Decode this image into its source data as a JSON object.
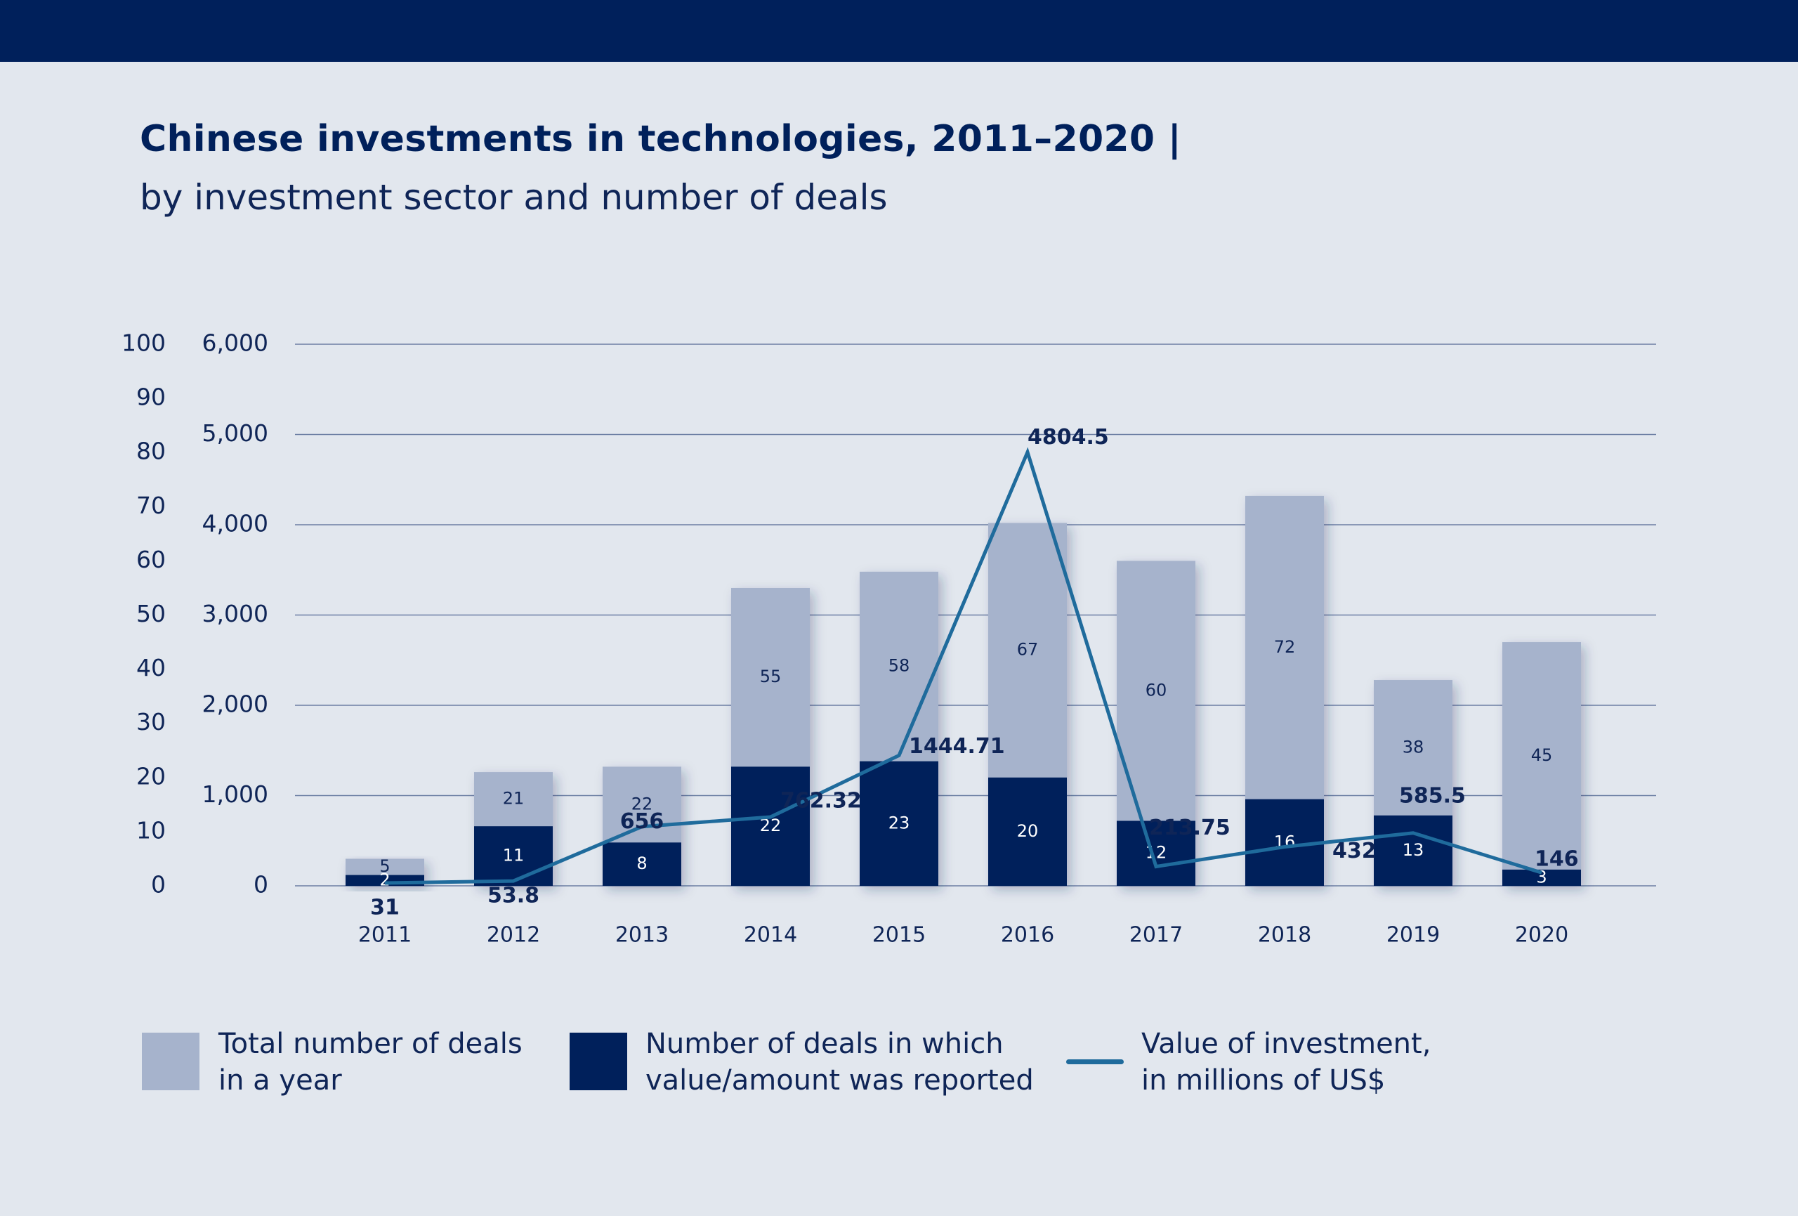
{
  "header": {
    "title": "Chinese investments in technologies, 2011–2020 |",
    "subtitle": "by investment sector and number of deals"
  },
  "colors": {
    "background": "#e2e7ee",
    "top_band": "#00205b",
    "total_bar": "#a6b3cc",
    "reported_bar": "#00205b",
    "line": "#1f6b9c",
    "gridline": "#6c7fa3"
  },
  "legend": {
    "total": "Total number of deals in a year",
    "reported": "Number of deals in which value/amount was reported",
    "value": "Value of investment, in millions of US$"
  },
  "chart_data": {
    "type": "bar",
    "categories": [
      "2011",
      "2012",
      "2013",
      "2014",
      "2015",
      "2016",
      "2017",
      "2018",
      "2019",
      "2020"
    ],
    "left_axis": {
      "ticks": [
        "0",
        "10",
        "20",
        "30",
        "40",
        "50",
        "60",
        "70",
        "80",
        "90",
        "100"
      ],
      "range": [
        0,
        100
      ]
    },
    "right_axis": {
      "ticks": [
        "0",
        "1,000",
        "2,000",
        "3,000",
        "4,000",
        "5,000",
        "6,000"
      ],
      "range": [
        0,
        6000
      ]
    },
    "series": [
      {
        "name": "Total number of deals in a year",
        "type": "bar",
        "axis": "left",
        "values": [
          5,
          21,
          22,
          55,
          58,
          67,
          60,
          72,
          38,
          45
        ],
        "labels": [
          "5",
          "21",
          "22",
          "55",
          "58",
          "67",
          "60",
          "72",
          "38",
          "45"
        ]
      },
      {
        "name": "Number of deals in which value/amount was reported",
        "type": "bar",
        "axis": "left",
        "values": [
          2,
          11,
          8,
          22,
          23,
          20,
          12,
          16,
          13,
          3
        ],
        "labels": [
          "2",
          "11",
          "8",
          "22",
          "23",
          "20",
          "12",
          "16",
          "13",
          "3"
        ]
      },
      {
        "name": "Value of investment, in millions of US$",
        "type": "line",
        "axis": "right",
        "values": [
          31,
          53.8,
          656,
          762.32,
          1444.71,
          4804.5,
          213.75,
          432,
          585.5,
          146
        ],
        "labels": [
          "31",
          "53.8",
          "656",
          "762.32",
          "1444.71",
          "4804.5",
          "213.75",
          "432",
          "585.5",
          "146"
        ]
      }
    ],
    "grid": true,
    "legend_position": "bottom"
  }
}
